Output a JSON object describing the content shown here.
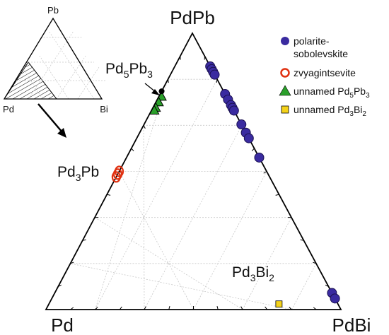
{
  "diagram": {
    "type": "ternary",
    "vertices": {
      "top": "PdPb",
      "bottom_left": "Pd",
      "bottom_right": "PdBi"
    },
    "inset": {
      "vertices": {
        "top": "Pb",
        "bottom_left": "Pd",
        "bottom_right": "Bi"
      }
    },
    "phase_labels": [
      {
        "id": "pd5pb3",
        "base": "Pd",
        "s1": "5",
        "mid": "Pb",
        "s2": "3"
      },
      {
        "id": "pd3pb",
        "base": "Pd",
        "s1": "3",
        "mid": "Pb",
        "s2": ""
      },
      {
        "id": "pd3bi2",
        "base": "Pd",
        "s1": "3",
        "mid": "Bi",
        "s2": "2"
      }
    ],
    "legend": [
      {
        "marker": "circle",
        "color": "#3a2ba0",
        "text_lines": [
          "polarite-",
          "sobolevskite"
        ]
      },
      {
        "marker": "ring",
        "color": "#e03010",
        "text": "zvyagintsevite"
      },
      {
        "marker": "triangle",
        "color": "#2aa02a",
        "base": "unnamed Pd",
        "s1": "5",
        "mid": "Pb",
        "s2": "3"
      },
      {
        "marker": "square",
        "color": "#f4d21a",
        "base": "unnamed Pd",
        "s1": "3",
        "mid": "Bi",
        "s2": "2"
      }
    ]
  },
  "chart_data": {
    "type": "scatter",
    "coordinate_system": "ternary",
    "components": [
      "PdPb",
      "Pd",
      "PdBi"
    ],
    "series": [
      {
        "name": "polarite-sobolevskite",
        "marker": "circle",
        "color": "#3a2ba0",
        "points": [
          {
            "PdPb": 0.88,
            "Pd": 0.0,
            "PdBi": 0.12
          },
          {
            "PdPb": 0.87,
            "Pd": 0.0,
            "PdBi": 0.13
          },
          {
            "PdPb": 0.86,
            "Pd": 0.0,
            "PdBi": 0.14
          },
          {
            "PdPb": 0.85,
            "Pd": 0.0,
            "PdBi": 0.15
          },
          {
            "PdPb": 0.78,
            "Pd": 0.0,
            "PdBi": 0.22
          },
          {
            "PdPb": 0.76,
            "Pd": 0.0,
            "PdBi": 0.24
          },
          {
            "PdPb": 0.74,
            "Pd": 0.0,
            "PdBi": 0.26
          },
          {
            "PdPb": 0.73,
            "Pd": 0.0,
            "PdBi": 0.27
          },
          {
            "PdPb": 0.72,
            "Pd": 0.0,
            "PdBi": 0.28
          },
          {
            "PdPb": 0.67,
            "Pd": 0.0,
            "PdBi": 0.33
          },
          {
            "PdPb": 0.64,
            "Pd": 0.0,
            "PdBi": 0.36
          },
          {
            "PdPb": 0.62,
            "Pd": 0.0,
            "PdBi": 0.38
          },
          {
            "PdPb": 0.55,
            "Pd": 0.0,
            "PdBi": 0.45
          },
          {
            "PdPb": 0.06,
            "Pd": 0.0,
            "PdBi": 0.94
          },
          {
            "PdPb": 0.04,
            "Pd": 0.0,
            "PdBi": 0.96
          }
        ]
      },
      {
        "name": "zvyagintsevite",
        "marker": "ring",
        "color": "#e03010",
        "points": [
          {
            "PdPb": 0.5,
            "Pd": 0.5,
            "PdBi": 0.0
          },
          {
            "PdPb": 0.49,
            "Pd": 0.51,
            "PdBi": 0.0
          },
          {
            "PdPb": 0.48,
            "Pd": 0.52,
            "PdBi": 0.0
          }
        ]
      },
      {
        "name": "unnamed Pd5Pb3",
        "marker": "triangle",
        "color": "#2aa02a",
        "points": [
          {
            "PdPb": 0.77,
            "Pd": 0.22,
            "PdBi": 0.01
          },
          {
            "PdPb": 0.75,
            "Pd": 0.24,
            "PdBi": 0.01
          },
          {
            "PdPb": 0.73,
            "Pd": 0.26,
            "PdBi": 0.01
          },
          {
            "PdPb": 0.72,
            "Pd": 0.27,
            "PdBi": 0.01
          }
        ]
      },
      {
        "name": "unnamed Pd3Bi2",
        "marker": "square",
        "color": "#f4d21a",
        "points": [
          {
            "PdPb": 0.02,
            "Pd": 0.2,
            "PdBi": 0.78
          }
        ]
      }
    ]
  }
}
